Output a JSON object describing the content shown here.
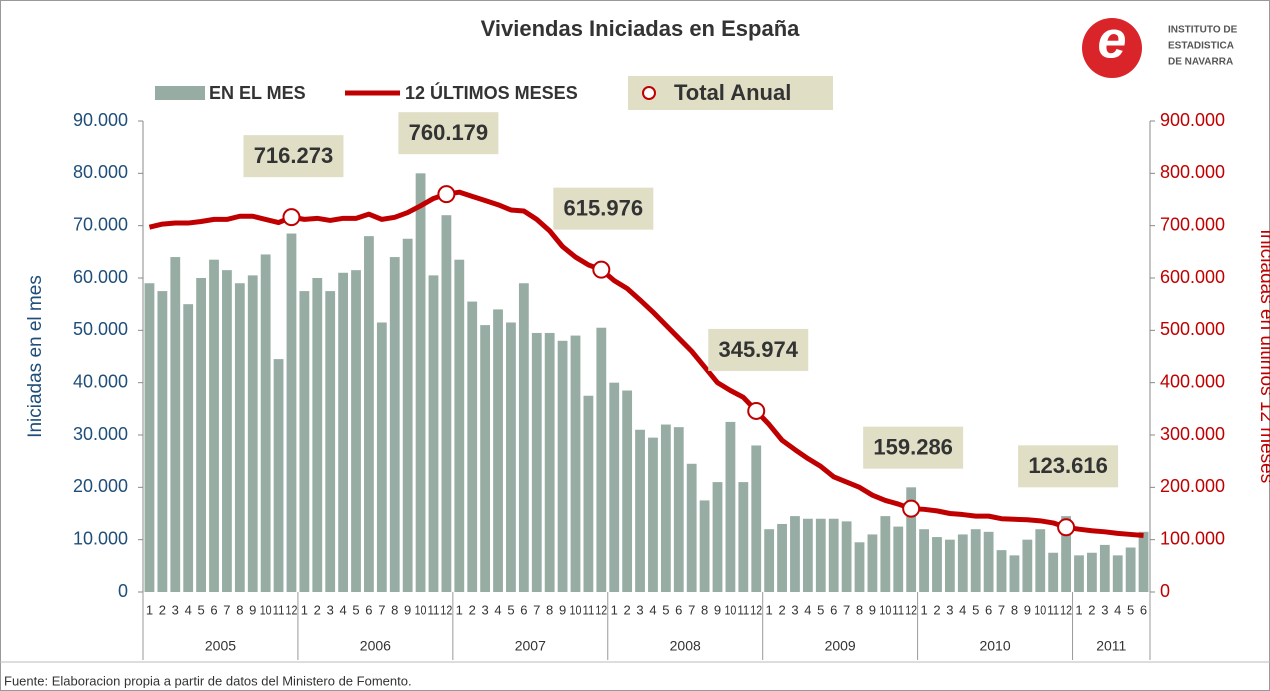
{
  "chart_data": {
    "type": "bar",
    "title": "Viviendas Iniciadas en España",
    "y_label": "Iniciadas en el mes",
    "y2_label": "iniciadas en últimos 12 meses",
    "source": "Fuente: Elaboracion propia a partir de datos del Ministero de Fomento.",
    "logo": [
      "INSTITUTO DE",
      "ESTADISTICA",
      "DE NAVARRA"
    ],
    "years": [
      "2005",
      "2006",
      "2007",
      "2008",
      "2009",
      "2010",
      "2011"
    ],
    "categories": [
      "1",
      "2",
      "3",
      "4",
      "5",
      "6",
      "7",
      "8",
      "9",
      "10",
      "11",
      "12",
      "1",
      "2",
      "3",
      "4",
      "5",
      "6",
      "7",
      "8",
      "9",
      "10",
      "11",
      "12",
      "1",
      "2",
      "3",
      "4",
      "5",
      "6",
      "7",
      "8",
      "9",
      "10",
      "11",
      "12",
      "1",
      "2",
      "3",
      "4",
      "5",
      "6",
      "7",
      "8",
      "9",
      "10",
      "11",
      "12",
      "1",
      "2",
      "3",
      "4",
      "5",
      "6",
      "7",
      "8",
      "9",
      "10",
      "11",
      "12",
      "1",
      "2",
      "3",
      "4",
      "5",
      "6",
      "7",
      "8",
      "9",
      "10",
      "11",
      "12",
      "1",
      "2",
      "3",
      "4",
      "5",
      "6"
    ],
    "ylim": [
      0,
      90000
    ],
    "yticks": [
      0,
      {
        "value": 10000,
        "label": "10.000"
      },
      {
        "value": 20000,
        "label": "20.000"
      },
      {
        "value": 30000,
        "label": "30.000"
      },
      {
        "value": 40000,
        "label": "40.000"
      },
      {
        "value": 50000,
        "label": "50.000"
      },
      {
        "value": 60000,
        "label": "60.000"
      },
      {
        "value": 70000,
        "label": "70.000"
      },
      {
        "value": 80000,
        "label": "80.000"
      },
      {
        "value": 90000,
        "label": "90.000"
      }
    ],
    "y2lim": [
      0,
      900000
    ],
    "y2ticks": [
      0,
      {
        "value": 100000,
        "label": "100.000"
      },
      {
        "value": 200000,
        "label": "200.000"
      },
      {
        "value": 300000,
        "label": "300.000"
      },
      {
        "value": 400000,
        "label": "400.000"
      },
      {
        "value": 500000,
        "label": "500.000"
      },
      {
        "value": 600000,
        "label": "600.000"
      },
      {
        "value": 700000,
        "label": "700.000"
      },
      {
        "value": 800000,
        "label": "800.000"
      },
      {
        "value": 900000,
        "label": "900.000"
      }
    ],
    "series": [
      {
        "name": "EN EL MES",
        "type": "bar",
        "color": "#97ada4",
        "values": [
          59000,
          57500,
          64000,
          55000,
          60000,
          63500,
          61500,
          59000,
          60500,
          64500,
          44500,
          68500,
          57500,
          60000,
          57500,
          61000,
          61500,
          68000,
          51500,
          64000,
          67500,
          80000,
          60500,
          72000,
          63500,
          55500,
          51000,
          54000,
          51500,
          59000,
          49500,
          49500,
          48000,
          49000,
          37500,
          50500,
          40000,
          38500,
          31000,
          29500,
          32000,
          31500,
          24500,
          17500,
          21000,
          32500,
          21000,
          28000,
          12000,
          13000,
          14500,
          14000,
          14000,
          14000,
          13500,
          9500,
          11000,
          14500,
          12500,
          20000,
          12000,
          10500,
          10000,
          11000,
          12000,
          11500,
          8000,
          7000,
          10000,
          12000,
          7500,
          14500,
          7000,
          7500,
          9000,
          7000,
          8500,
          11500
        ]
      },
      {
        "name": "12 ÚLTIMOS MESES",
        "type": "line",
        "axis": "y2",
        "color": "#c00000",
        "values": [
          697000,
          703000,
          705000,
          705000,
          708000,
          712000,
          712000,
          718000,
          718000,
          712000,
          706000,
          716273,
          712000,
          714000,
          710000,
          714000,
          714000,
          722000,
          712000,
          716000,
          725000,
          738000,
          752000,
          760179,
          764000,
          756000,
          748000,
          740000,
          730000,
          728000,
          712000,
          690000,
          660000,
          640000,
          625000,
          615976,
          595000,
          580000,
          558000,
          535000,
          510000,
          485000,
          460000,
          430000,
          400000,
          385000,
          372000,
          345974,
          320000,
          290000,
          272000,
          255000,
          240000,
          220000,
          210000,
          200000,
          185000,
          175000,
          168000,
          159286,
          158000,
          155000,
          150000,
          148000,
          145000,
          145000,
          140000,
          139000,
          138000,
          136000,
          132000,
          123616,
          120000,
          117000,
          115000,
          112000,
          110000,
          108000
        ]
      },
      {
        "name": "Total Anual",
        "type": "point",
        "axis": "y2",
        "color": "#c00000",
        "values": [
          null,
          null,
          null,
          null,
          null,
          null,
          null,
          null,
          null,
          null,
          null,
          716273,
          null,
          null,
          null,
          null,
          null,
          null,
          null,
          null,
          null,
          null,
          null,
          760179,
          null,
          null,
          null,
          null,
          null,
          null,
          null,
          null,
          null,
          null,
          null,
          615976,
          null,
          null,
          null,
          null,
          null,
          null,
          null,
          null,
          null,
          null,
          null,
          345974,
          null,
          null,
          null,
          null,
          null,
          null,
          null,
          null,
          null,
          null,
          null,
          159286,
          null,
          null,
          null,
          null,
          null,
          null,
          null,
          null,
          null,
          null,
          null,
          123616,
          null,
          null,
          null,
          null,
          null,
          null
        ],
        "value_labels": [
          null,
          null,
          null,
          null,
          null,
          null,
          null,
          null,
          null,
          null,
          null,
          "716.273",
          null,
          null,
          null,
          null,
          null,
          null,
          null,
          null,
          null,
          null,
          null,
          "760.179",
          null,
          null,
          null,
          null,
          null,
          null,
          null,
          null,
          null,
          null,
          null,
          "615.976",
          null,
          null,
          null,
          null,
          null,
          null,
          null,
          null,
          null,
          null,
          null,
          "345.974",
          null,
          null,
          null,
          null,
          null,
          null,
          null,
          null,
          null,
          null,
          null,
          "159.286",
          null,
          null,
          null,
          null,
          null,
          null,
          null,
          null,
          null,
          null,
          null,
          "123.616",
          null,
          null,
          null,
          null,
          null,
          null
        ]
      }
    ]
  }
}
